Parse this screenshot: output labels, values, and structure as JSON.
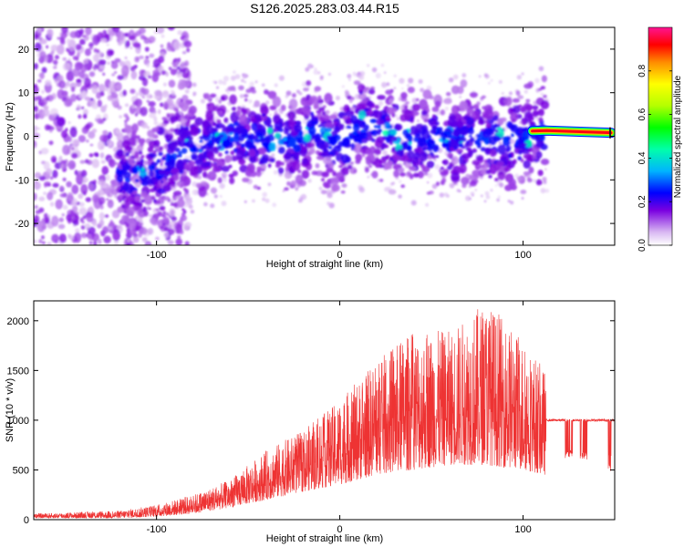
{
  "figure": {
    "title": "S126.2025.283.03.44.R15"
  },
  "chart_data": [
    {
      "type": "heatmap",
      "title": "S126.2025.283.03.44.R15",
      "xlabel": "Height of straight line (km)",
      "ylabel": "Frequency (Hz)",
      "xlim": [
        -167,
        150
      ],
      "ylim": [
        -25,
        25
      ],
      "x_ticks": [
        -100,
        0,
        100
      ],
      "x_tick_labels": [
        "-100",
        "0",
        "100"
      ],
      "y_ticks": [
        20,
        10,
        0,
        -10,
        -20
      ],
      "y_tick_labels": [
        "20",
        "10",
        "0",
        "-10",
        "-20"
      ],
      "colorbar": {
        "label": "Normalized spectral amplitude",
        "range": [
          0,
          1
        ],
        "ticks": [
          0.0,
          0.2,
          0.4,
          0.6,
          0.8
        ],
        "tick_labels": [
          "0.0",
          "0.2",
          "0.4",
          "0.6",
          "0.8"
        ]
      },
      "ridge": {
        "description": "frequency of maximum spectral amplitude versus height",
        "points": [
          {
            "x": -115,
            "y": -9.5
          },
          {
            "x": -100,
            "y": -7.5
          },
          {
            "x": -85,
            "y": -3
          },
          {
            "x": -70,
            "y": -1
          },
          {
            "x": -55,
            "y": 0
          },
          {
            "x": -40,
            "y": -1
          },
          {
            "x": -25,
            "y": -1.5
          },
          {
            "x": -15,
            "y": 1.5
          },
          {
            "x": 0,
            "y": -2
          },
          {
            "x": 10,
            "y": 2
          },
          {
            "x": 20,
            "y": 2.5
          },
          {
            "x": 30,
            "y": 0
          },
          {
            "x": 50,
            "y": -1
          },
          {
            "x": 70,
            "y": 0
          },
          {
            "x": 90,
            "y": -1.5
          },
          {
            "x": 110,
            "y": 1
          },
          {
            "x": 120,
            "y": 0.8
          },
          {
            "x": 148,
            "y": 0.8
          }
        ],
        "high_amplitude_band": {
          "x_start": 110,
          "x_end": 148,
          "y": 0.8,
          "amplitude": 0.95
        }
      }
    },
    {
      "type": "line",
      "title": "",
      "xlabel": "Height of straight line (km)",
      "ylabel": "SNR (10 * v/v)",
      "xlim": [
        -167,
        150
      ],
      "ylim": [
        0,
        2200
      ],
      "x_ticks": [
        -100,
        0,
        100
      ],
      "x_tick_labels": [
        "-100",
        "0",
        "100"
      ],
      "y_ticks": [
        0,
        500,
        1000,
        1500,
        2000
      ],
      "y_tick_labels": [
        "0",
        "500",
        "1000",
        "1500",
        "2000"
      ],
      "series": [
        {
          "name": "SNR",
          "color": "#ee3333",
          "envelope_x": [
            -167,
            -120,
            -100,
            -80,
            -60,
            -40,
            -20,
            0,
            20,
            40,
            60,
            80,
            100,
            112,
            113,
            150
          ],
          "envelope_max": [
            60,
            90,
            150,
            250,
            400,
            700,
            900,
            1200,
            1600,
            1900,
            1900,
            2200,
            1800,
            1500,
            1010,
            1010
          ],
          "envelope_base": [
            15,
            15,
            30,
            60,
            120,
            200,
            280,
            350,
            450,
            500,
            550,
            550,
            500,
            450,
            1000,
            1000
          ]
        }
      ]
    }
  ]
}
